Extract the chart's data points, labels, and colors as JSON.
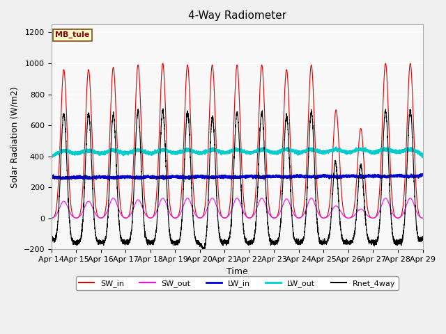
{
  "title": "4-Way Radiometer",
  "xlabel": "Time",
  "ylabel": "Solar Radiation (W/m2)",
  "ylim": [
    -200,
    1250
  ],
  "yticks": [
    -200,
    0,
    200,
    400,
    600,
    800,
    1000,
    1200
  ],
  "station_label": "MB_tule",
  "days": 15,
  "start_day": 14,
  "colors": {
    "SW_in": "#dd0000",
    "SW_out": "#ff00ff",
    "LW_in": "#0000cc",
    "LW_out": "#00cccc",
    "Rnet_4way": "#000000"
  },
  "sw_in_peaks": [
    960,
    960,
    975,
    990,
    1000,
    990,
    990,
    990,
    990,
    960,
    990,
    700,
    580,
    1000,
    1000
  ],
  "sw_out_peaks": [
    110,
    110,
    130,
    120,
    130,
    130,
    130,
    130,
    130,
    125,
    130,
    80,
    60,
    130,
    130
  ],
  "lw_out_base": 380,
  "lw_in_base": 270,
  "rnet_night": -100,
  "background_color": "#f0f0f0",
  "plot_bg_color": "#f0f0f0",
  "grid_color": "#ffffff",
  "title_fontsize": 11,
  "label_fontsize": 9,
  "tick_fontsize": 8
}
